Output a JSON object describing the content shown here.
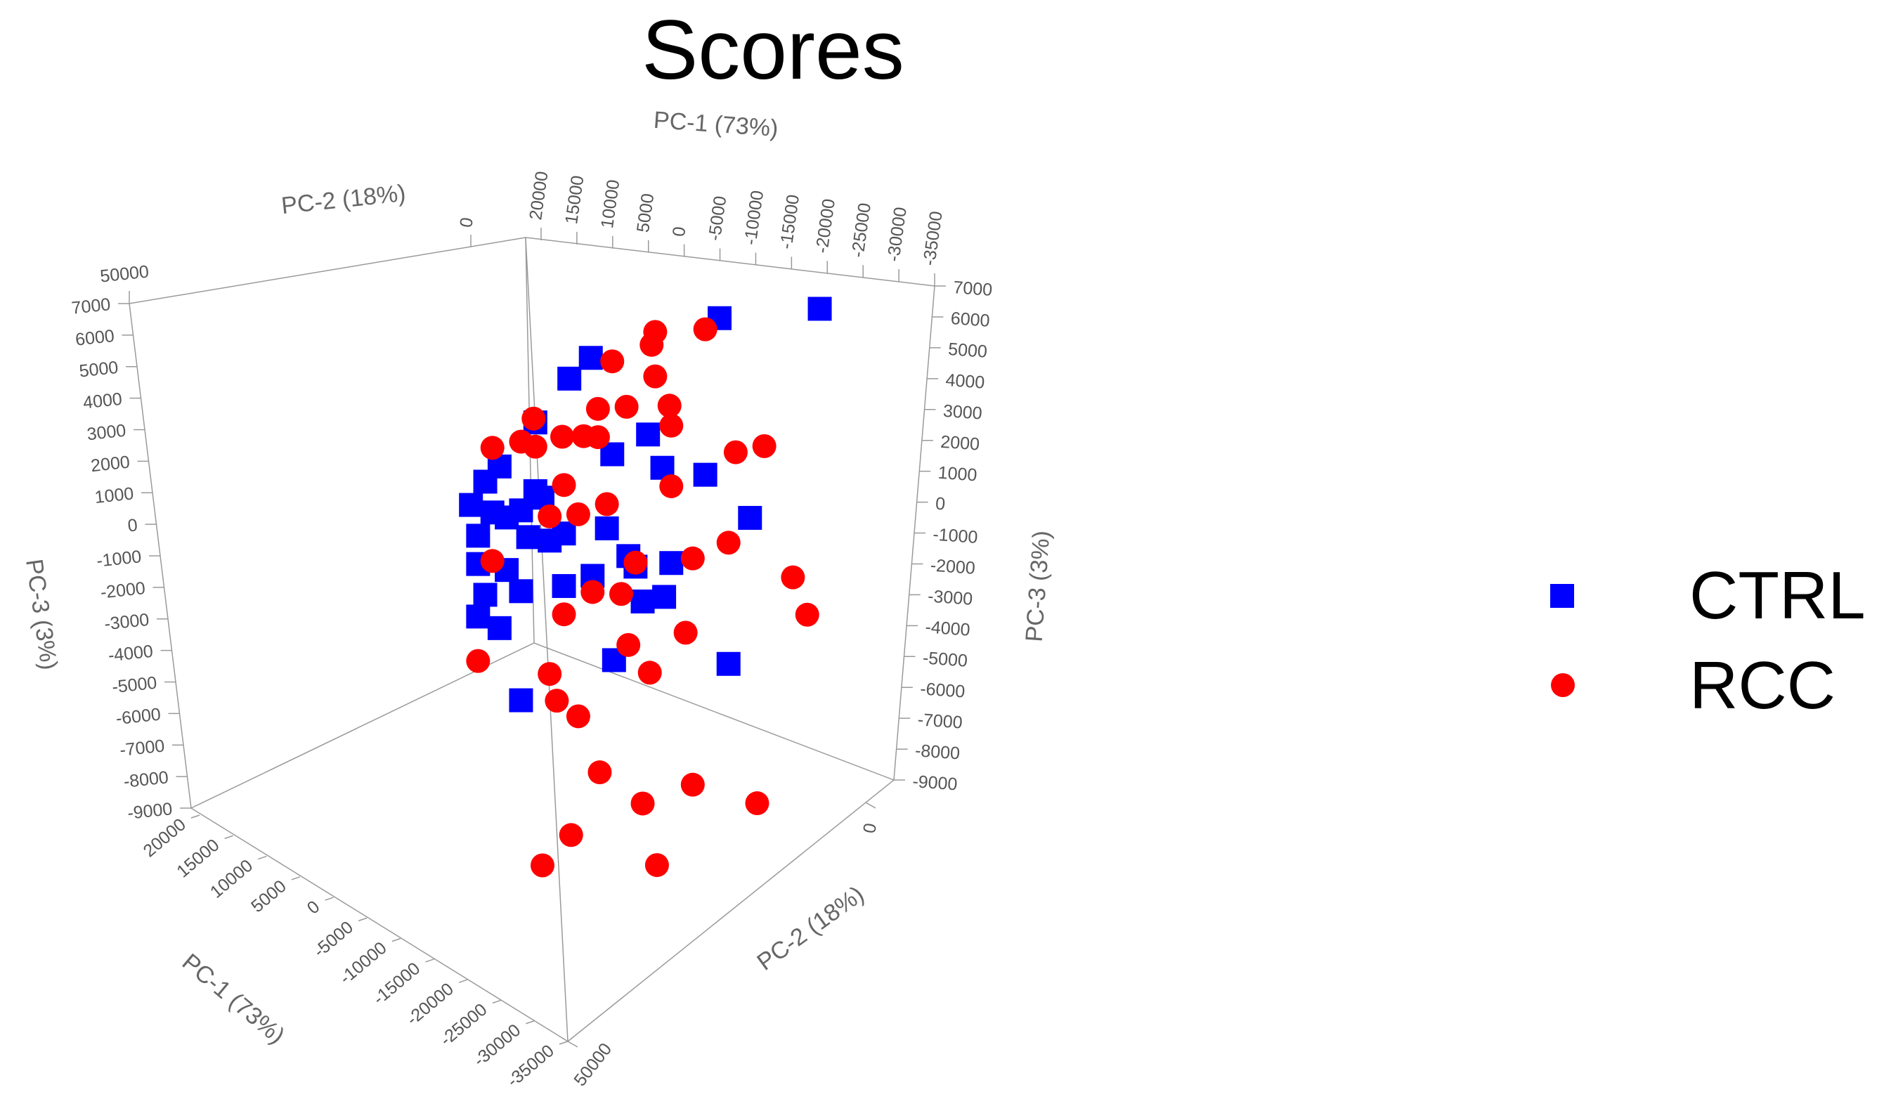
{
  "chart_data": {
    "type": "scatter",
    "title": "Scores",
    "axes": {
      "pc1": {
        "label": "PC-1 (73%)",
        "ticks": [
          20000,
          15000,
          10000,
          5000,
          0,
          -5000,
          -10000,
          -15000,
          -20000,
          -25000,
          -30000,
          -35000
        ]
      },
      "pc2": {
        "label": "PC-2 (18%)",
        "ticks": [
          0,
          50000
        ]
      },
      "pc3": {
        "label": "PC-3 (3%)",
        "ticks": [
          7000,
          6000,
          5000,
          4000,
          3000,
          2000,
          1000,
          0,
          -1000,
          -2000,
          -3000,
          -4000,
          -5000,
          -6000,
          -7000,
          -8000,
          -9000
        ]
      }
    },
    "legend": {
      "position": "right",
      "entries": [
        {
          "name": "CTRL",
          "marker": "square",
          "color": "#0000ff"
        },
        {
          "name": "RCC",
          "marker": "circle",
          "color": "#ff0000"
        }
      ]
    },
    "series": [
      {
        "name": "CTRL",
        "marker": "square",
        "color": "#0000ff",
        "points": [
          {
            "pc1": 5000,
            "pc2": 0,
            "pc3": 6200
          },
          {
            "pc1": 8000,
            "pc2": 0,
            "pc3": 5800
          },
          {
            "pc1": 10000,
            "pc2": 10000,
            "pc3": 5000
          },
          {
            "pc1": -27000,
            "pc2": 0,
            "pc3": 6200
          },
          {
            "pc1": -13000,
            "pc2": 0,
            "pc3": 6500
          },
          {
            "pc1": -3000,
            "pc2": 0,
            "pc3": 4000
          },
          {
            "pc1": 2000,
            "pc2": 0,
            "pc3": 3700
          },
          {
            "pc1": -5000,
            "pc2": 0,
            "pc3": 3100
          },
          {
            "pc1": -11000,
            "pc2": 0,
            "pc3": 2700
          },
          {
            "pc1": 0,
            "pc2": 10000,
            "pc3": 2000
          },
          {
            "pc1": 15000,
            "pc2": 10000,
            "pc3": 4100
          },
          {
            "pc1": 17000,
            "pc2": 10000,
            "pc3": 3800
          },
          {
            "pc1": 19000,
            "pc2": 10000,
            "pc3": 3300
          },
          {
            "pc1": 16000,
            "pc2": 10000,
            "pc3": 3000
          },
          {
            "pc1": 14000,
            "pc2": 10000,
            "pc3": 2800
          },
          {
            "pc1": 18000,
            "pc2": 10000,
            "pc3": 2500
          },
          {
            "pc1": 12000,
            "pc2": 10000,
            "pc3": 2900
          },
          {
            "pc1": 10000,
            "pc2": 10000,
            "pc3": 3300
          },
          {
            "pc1": 9000,
            "pc2": 10000,
            "pc3": 3100
          },
          {
            "pc1": 11000,
            "pc2": 10000,
            "pc3": 2200
          },
          {
            "pc1": 8000,
            "pc2": 10000,
            "pc3": 2000
          },
          {
            "pc1": 6000,
            "pc2": 10000,
            "pc3": 2100
          },
          {
            "pc1": 18000,
            "pc2": 10000,
            "pc3": 1800
          },
          {
            "pc1": 14000,
            "pc2": 10000,
            "pc3": 1500
          },
          {
            "pc1": 17000,
            "pc2": 10000,
            "pc3": 1000
          },
          {
            "pc1": 12000,
            "pc2": 10000,
            "pc3": 900
          },
          {
            "pc1": 6000,
            "pc2": 10000,
            "pc3": 800
          },
          {
            "pc1": 18000,
            "pc2": 10000,
            "pc3": 500
          },
          {
            "pc1": 15000,
            "pc2": 10000,
            "pc3": 100
          },
          {
            "pc1": 2000,
            "pc2": 10000,
            "pc3": 900
          },
          {
            "pc1": 12000,
            "pc2": 10000,
            "pc3": -1800
          },
          {
            "pc1": -5000,
            "pc2": 10000,
            "pc3": 0
          },
          {
            "pc1": -4000,
            "pc2": 10000,
            "pc3": 900
          },
          {
            "pc1": -8000,
            "pc2": 10000,
            "pc3": 0
          },
          {
            "pc1": -1000,
            "pc2": 10000,
            "pc3": -1300
          },
          {
            "pc1": -9000,
            "pc2": 10000,
            "pc3": 800
          },
          {
            "pc1": -3000,
            "pc2": 10000,
            "pc3": 1200
          },
          {
            "pc1": -17000,
            "pc2": 10000,
            "pc3": -2000
          },
          {
            "pc1": -20000,
            "pc2": 10000,
            "pc3": 1500
          }
        ]
      },
      {
        "name": "RCC",
        "marker": "circle",
        "color": "#ff0000",
        "points": [
          {
            "pc1": 2000,
            "pc2": 0,
            "pc3": 6000
          },
          {
            "pc1": -4000,
            "pc2": 0,
            "pc3": 5400
          },
          {
            "pc1": 13000,
            "pc2": 0,
            "pc3": 5000
          },
          {
            "pc1": 4000,
            "pc2": 0,
            "pc3": 4900
          },
          {
            "pc1": 0,
            "pc2": 0,
            "pc3": 4800
          },
          {
            "pc1": -6000,
            "pc2": 0,
            "pc3": 4600
          },
          {
            "pc1": 4000,
            "pc2": 0,
            "pc3": 4200
          },
          {
            "pc1": 9000,
            "pc2": 0,
            "pc3": 4400
          },
          {
            "pc1": 6000,
            "pc2": 0,
            "pc3": 4300
          },
          {
            "pc1": -4000,
            "pc2": 0,
            "pc3": 6500
          },
          {
            "pc1": -3500,
            "pc2": 0,
            "pc3": 6200
          },
          {
            "pc1": -11000,
            "pc2": 0,
            "pc3": 6300
          },
          {
            "pc1": 16000,
            "pc2": 10000,
            "pc3": 4600
          },
          {
            "pc1": 12000,
            "pc2": 10000,
            "pc3": 4600
          },
          {
            "pc1": 10000,
            "pc2": 10000,
            "pc3": 4400
          },
          {
            "pc1": 6000,
            "pc2": 10000,
            "pc3": 3300
          },
          {
            "pc1": 8000,
            "pc2": 10000,
            "pc3": 2600
          },
          {
            "pc1": 16000,
            "pc2": 10000,
            "pc3": 1800
          },
          {
            "pc1": 4000,
            "pc2": 10000,
            "pc3": 2500
          },
          {
            "pc1": 0,
            "pc2": 10000,
            "pc3": 2600
          },
          {
            "pc1": -9000,
            "pc2": 10000,
            "pc3": 2700
          },
          {
            "pc1": -18000,
            "pc2": 10000,
            "pc3": 3200
          },
          {
            "pc1": -22000,
            "pc2": 10000,
            "pc3": 3200
          },
          {
            "pc1": -9000,
            "pc2": 10000,
            "pc3": 4200
          },
          {
            "pc1": -4000,
            "pc2": 10000,
            "pc3": 1000
          },
          {
            "pc1": 2000,
            "pc2": 10000,
            "pc3": 500
          },
          {
            "pc1": 6000,
            "pc2": 10000,
            "pc3": 100
          },
          {
            "pc1": -2000,
            "pc2": 10000,
            "pc3": 300
          },
          {
            "pc1": -3000,
            "pc2": 10000,
            "pc3": -1000
          },
          {
            "pc1": 8000,
            "pc2": 10000,
            "pc3": -1300
          },
          {
            "pc1": 7000,
            "pc2": 10000,
            "pc3": -2000
          },
          {
            "pc1": 4000,
            "pc2": 10000,
            "pc3": -2500
          },
          {
            "pc1": -6000,
            "pc2": 10000,
            "pc3": -1800
          },
          {
            "pc1": -11000,
            "pc2": 10000,
            "pc3": -1000
          },
          {
            "pc1": -12000,
            "pc2": 10000,
            "pc3": 800
          },
          {
            "pc1": -17000,
            "pc2": 10000,
            "pc3": 1000
          },
          {
            "pc1": -26000,
            "pc2": 10000,
            "pc3": -200
          },
          {
            "pc1": -28000,
            "pc2": 10000,
            "pc3": -1200
          },
          {
            "pc1": 18000,
            "pc2": 10000,
            "pc3": -600
          },
          {
            "pc1": 1000,
            "pc2": 10000,
            "pc3": -4000
          },
          {
            "pc1": 5000,
            "pc2": 10000,
            "pc3": -5400
          },
          {
            "pc1": 9000,
            "pc2": 10000,
            "pc3": -6000
          },
          {
            "pc1": -5000,
            "pc2": 10000,
            "pc3": -5000
          },
          {
            "pc1": -12000,
            "pc2": 10000,
            "pc3": -4800
          },
          {
            "pc1": -7000,
            "pc2": 10000,
            "pc3": -6600
          },
          {
            "pc1": -21000,
            "pc2": 10000,
            "pc3": -5600
          }
        ]
      }
    ]
  }
}
